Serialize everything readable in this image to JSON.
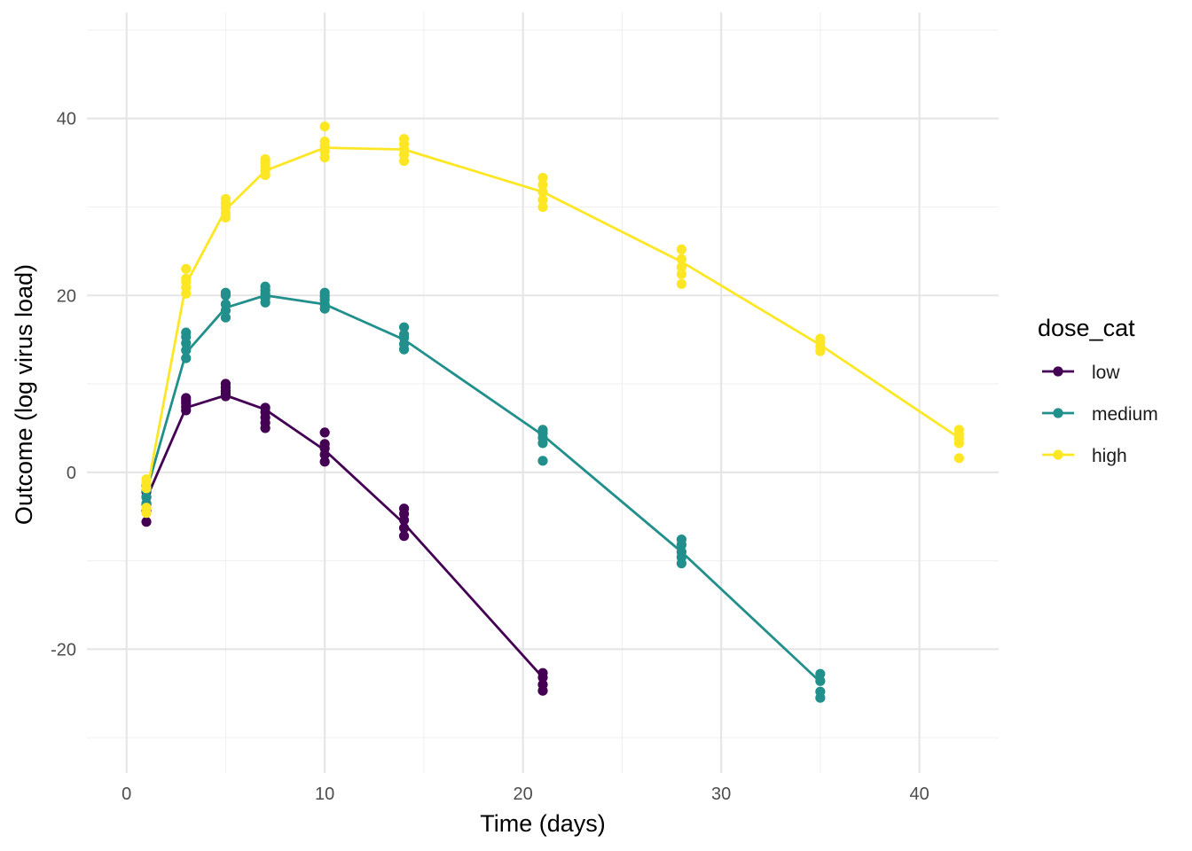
{
  "chart_data": {
    "type": "line",
    "xlabel": "Time (days)",
    "ylabel": "Outcome (log virus load)",
    "xlim": [
      -2,
      44
    ],
    "ylim": [
      -34,
      52
    ],
    "x_ticks": [
      0,
      10,
      20,
      30,
      40
    ],
    "y_ticks": [
      -20,
      0,
      20,
      40
    ],
    "x_minor_ticks": [
      5,
      15,
      25,
      35
    ],
    "y_minor_ticks": [
      -30,
      -10,
      10,
      30,
      50
    ],
    "grid": true,
    "legend_title": "dose_cat",
    "legend_position": "right",
    "series": [
      {
        "name": "low",
        "color": "#440154",
        "line": {
          "x": [
            1,
            3,
            5,
            7,
            10,
            14,
            21
          ],
          "y": [
            -3.0,
            7.3,
            8.7,
            7.1,
            2.5,
            -5.8,
            -23.2
          ]
        },
        "points": [
          [
            1,
            -5.6
          ],
          [
            1,
            -4.4
          ],
          [
            1,
            -3.6
          ],
          [
            1,
            -2.8
          ],
          [
            1,
            -2.2
          ],
          [
            3,
            7.0
          ],
          [
            3,
            7.4
          ],
          [
            3,
            7.8
          ],
          [
            3,
            8.1
          ],
          [
            3,
            8.4
          ],
          [
            5,
            8.6
          ],
          [
            5,
            8.9
          ],
          [
            5,
            9.2
          ],
          [
            5,
            9.6
          ],
          [
            5,
            10.0
          ],
          [
            7,
            5.0
          ],
          [
            7,
            5.6
          ],
          [
            7,
            6.2
          ],
          [
            7,
            6.8
          ],
          [
            7,
            7.3
          ],
          [
            10,
            1.2
          ],
          [
            10,
            2.0
          ],
          [
            10,
            2.7
          ],
          [
            10,
            3.2
          ],
          [
            10,
            4.5
          ],
          [
            14,
            -7.2
          ],
          [
            14,
            -6.3
          ],
          [
            14,
            -5.4
          ],
          [
            14,
            -4.7
          ],
          [
            14,
            -4.1
          ],
          [
            21,
            -24.7
          ],
          [
            21,
            -24.0
          ],
          [
            21,
            -23.2
          ],
          [
            21,
            -22.7
          ]
        ]
      },
      {
        "name": "medium",
        "color": "#21908C",
        "line": {
          "x": [
            1,
            3,
            5,
            7,
            10,
            14,
            21,
            28,
            35
          ],
          "y": [
            -2.2,
            13.5,
            18.6,
            20.0,
            19.0,
            15.0,
            4.2,
            -9.0,
            -23.7
          ]
        },
        "points": [
          [
            1,
            -3.5
          ],
          [
            1,
            -2.8
          ],
          [
            1,
            -2.0
          ],
          [
            1,
            -1.5
          ],
          [
            3,
            12.9
          ],
          [
            3,
            13.8
          ],
          [
            3,
            14.6
          ],
          [
            3,
            15.3
          ],
          [
            3,
            15.8
          ],
          [
            5,
            17.5
          ],
          [
            5,
            18.3
          ],
          [
            5,
            19.0
          ],
          [
            5,
            20.0
          ],
          [
            5,
            20.3
          ],
          [
            7,
            19.2
          ],
          [
            7,
            19.7
          ],
          [
            7,
            20.2
          ],
          [
            7,
            20.6
          ],
          [
            7,
            21.0
          ],
          [
            10,
            18.5
          ],
          [
            10,
            19.0
          ],
          [
            10,
            19.5
          ],
          [
            10,
            19.9
          ],
          [
            10,
            20.3
          ],
          [
            14,
            13.9
          ],
          [
            14,
            14.5
          ],
          [
            14,
            15.2
          ],
          [
            14,
            15.6
          ],
          [
            14,
            16.4
          ],
          [
            21,
            1.3
          ],
          [
            21,
            3.3
          ],
          [
            21,
            3.9
          ],
          [
            21,
            4.4
          ],
          [
            21,
            4.8
          ],
          [
            28,
            -10.3
          ],
          [
            28,
            -9.6
          ],
          [
            28,
            -9.0
          ],
          [
            28,
            -8.2
          ],
          [
            28,
            -7.6
          ],
          [
            35,
            -25.5
          ],
          [
            35,
            -24.8
          ],
          [
            35,
            -23.6
          ],
          [
            35,
            -22.8
          ]
        ]
      },
      {
        "name": "high",
        "color": "#FDE725",
        "line": {
          "x": [
            1,
            3,
            5,
            7,
            10,
            14,
            21,
            28,
            35,
            42
          ],
          "y": [
            -2.5,
            21.3,
            29.7,
            34.1,
            36.7,
            36.5,
            31.7,
            23.8,
            14.4,
            3.9
          ]
        },
        "points": [
          [
            1,
            -4.6
          ],
          [
            1,
            -4.0
          ],
          [
            1,
            -1.8
          ],
          [
            1,
            -1.2
          ],
          [
            1,
            -0.8
          ],
          [
            3,
            20.2
          ],
          [
            3,
            20.9
          ],
          [
            3,
            21.5
          ],
          [
            3,
            21.9
          ],
          [
            3,
            23.0
          ],
          [
            5,
            28.8
          ],
          [
            5,
            29.3
          ],
          [
            5,
            29.9
          ],
          [
            5,
            30.4
          ],
          [
            5,
            30.9
          ],
          [
            7,
            33.6
          ],
          [
            7,
            34.1
          ],
          [
            7,
            34.6
          ],
          [
            7,
            35.0
          ],
          [
            7,
            35.4
          ],
          [
            10,
            35.6
          ],
          [
            10,
            36.3
          ],
          [
            10,
            36.9
          ],
          [
            10,
            37.4
          ],
          [
            10,
            39.1
          ],
          [
            14,
            35.2
          ],
          [
            14,
            35.9
          ],
          [
            14,
            36.5
          ],
          [
            14,
            37.1
          ],
          [
            14,
            37.7
          ],
          [
            21,
            30.0
          ],
          [
            21,
            30.8
          ],
          [
            21,
            31.7
          ],
          [
            21,
            32.5
          ],
          [
            21,
            33.3
          ],
          [
            28,
            21.3
          ],
          [
            28,
            22.4
          ],
          [
            28,
            23.2
          ],
          [
            28,
            24.1
          ],
          [
            28,
            25.2
          ],
          [
            35,
            13.7
          ],
          [
            35,
            14.2
          ],
          [
            35,
            14.7
          ],
          [
            35,
            15.1
          ],
          [
            42,
            1.6
          ],
          [
            42,
            3.3
          ],
          [
            42,
            3.8
          ],
          [
            42,
            4.3
          ],
          [
            42,
            4.8
          ]
        ]
      }
    ]
  }
}
